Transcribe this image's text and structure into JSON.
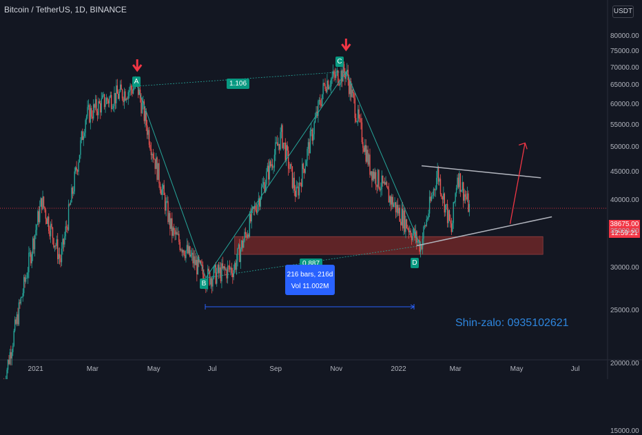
{
  "header": {
    "title": "Bitcoin / TetherUS, 1D, BINANCE"
  },
  "currency_button": {
    "label": "USDT"
  },
  "price_axis": {
    "ticks": [
      "80000.00",
      "75000.00",
      "70000.00",
      "65000.00",
      "60000.00",
      "55000.00",
      "50000.00",
      "45000.00",
      "40000.00",
      "35000.00",
      "30000.00",
      "25000.00",
      "20000.00",
      "15000.00"
    ],
    "current_price": "38675.00",
    "countdown": "12:59:21"
  },
  "time_axis": {
    "ticks": [
      "2021",
      "Mar",
      "May",
      "Jul",
      "Sep",
      "Nov",
      "2022",
      "Mar",
      "May",
      "Jul"
    ]
  },
  "pattern": {
    "points": [
      {
        "label": "A",
        "date": "2021-04-14",
        "price": 64900
      },
      {
        "label": "B",
        "date": "2021-06-22",
        "price": 28800
      },
      {
        "label": "C",
        "date": "2021-11-10",
        "price": 69000
      },
      {
        "label": "D",
        "date": "2022-01-24",
        "price": 33000
      }
    ],
    "ratio_ac": "1.106",
    "ratio_bd": "0.887"
  },
  "measure": {
    "bars_label": "216 bars, 216d",
    "volume_label": "Vol 11.002M"
  },
  "watermark": {
    "text": "Shin-zalo: 0935102621"
  },
  "colors": {
    "background": "#131722",
    "up_candle": "#26a69a",
    "down_candle": "#ef5350",
    "pattern_line": "#26a69a",
    "arrow": "#f23645",
    "zone": "#7a2a2a",
    "measure": "#2962ff",
    "triangle_lines": "#b2b5be"
  },
  "chart_data": {
    "type": "candlestick",
    "symbol": "BTCUSDT",
    "interval": "1D",
    "y_scale": "log",
    "ylim": [
      13000,
      84000
    ],
    "xlim": [
      "2020-11-27",
      "2022-07-31"
    ],
    "grid": false,
    "support_zone": {
      "start": "2021-07-21",
      "end": "2022-05-27",
      "low": 31800,
      "high": 34300
    },
    "key_prices": [
      {
        "date": "2020-12-01",
        "price": 18500
      },
      {
        "date": "2021-01-08",
        "price": 40000
      },
      {
        "date": "2021-01-27",
        "price": 31000
      },
      {
        "date": "2021-02-21",
        "price": 57000
      },
      {
        "date": "2021-03-13",
        "price": 61000
      },
      {
        "date": "2021-04-14",
        "price": 64900
      },
      {
        "date": "2021-05-19",
        "price": 35000
      },
      {
        "date": "2021-06-22",
        "price": 28800
      },
      {
        "date": "2021-07-20",
        "price": 30000
      },
      {
        "date": "2021-09-06",
        "price": 52800
      },
      {
        "date": "2021-09-21",
        "price": 40800
      },
      {
        "date": "2021-10-20",
        "price": 66000
      },
      {
        "date": "2021-11-10",
        "price": 69000
      },
      {
        "date": "2021-12-04",
        "price": 46000
      },
      {
        "date": "2022-01-24",
        "price": 33000
      },
      {
        "date": "2022-02-10",
        "price": 45000
      },
      {
        "date": "2022-02-24",
        "price": 35000
      },
      {
        "date": "2022-03-02",
        "price": 44800
      },
      {
        "date": "2022-03-14",
        "price": 38675
      }
    ]
  }
}
